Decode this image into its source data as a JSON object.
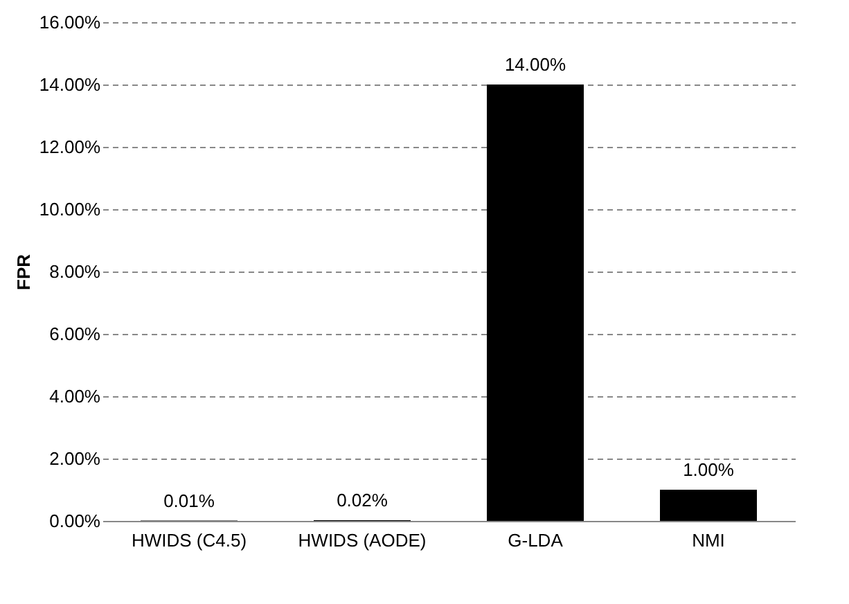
{
  "chart_data": {
    "type": "bar",
    "ylabel": "FPR",
    "categories": [
      "HWIDS (C4.5)",
      "HWIDS (AODE)",
      "G-LDA",
      "NMI"
    ],
    "values": [
      0.01,
      0.02,
      14,
      1
    ],
    "colors": [
      "#000000",
      "#000000",
      "#000000",
      "#000000"
    ],
    "value_labels": [
      "0.01%",
      "0.02%",
      "14.00%",
      "1.00%"
    ],
    "ylim": [
      0,
      16
    ],
    "yticks": [
      {
        "value": 0,
        "label": "0.00%"
      },
      {
        "value": 2,
        "label": "2.00%"
      },
      {
        "value": 4,
        "label": "4.00%"
      },
      {
        "value": 6,
        "label": "6.00%"
      },
      {
        "value": 8,
        "label": "8.00%"
      },
      {
        "value": 10,
        "label": "10.00%"
      },
      {
        "value": 12,
        "label": "12.00%"
      },
      {
        "value": 14,
        "label": "14.00%"
      },
      {
        "value": 16,
        "label": "16.00%"
      }
    ],
    "grid": "y"
  }
}
